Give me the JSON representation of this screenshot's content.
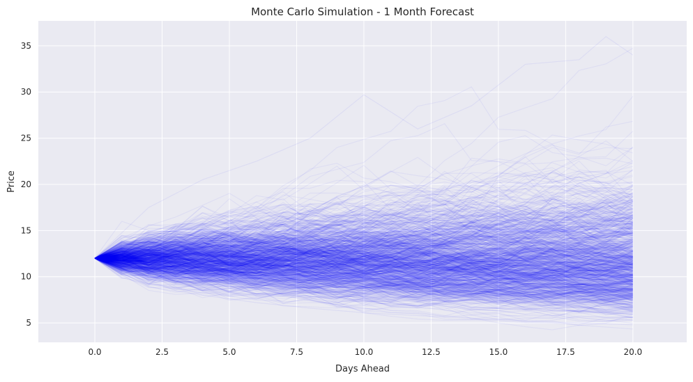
{
  "chart_data": {
    "type": "line",
    "title": "Monte Carlo Simulation - 1 Month Forecast",
    "xlabel": "Days Ahead",
    "ylabel": "Price",
    "xlim": [
      -2.1,
      22.0
    ],
    "ylim": [
      2.9,
      37.7
    ],
    "xticks": [
      0.0,
      2.5,
      5.0,
      7.5,
      10.0,
      12.5,
      15.0,
      17.5,
      20.0
    ],
    "xtick_labels": [
      "0.0",
      "2.5",
      "5.0",
      "7.5",
      "10.0",
      "12.5",
      "15.0",
      "17.5",
      "20.0"
    ],
    "yticks": [
      5,
      10,
      15,
      20,
      25,
      30,
      35
    ],
    "ytick_labels": [
      "5",
      "10",
      "15",
      "20",
      "25",
      "30",
      "35"
    ],
    "grid": true,
    "legend": "none",
    "start_price": 12.0,
    "num_days": 20,
    "num_simulations": 1000,
    "line_color": "#0000ff",
    "line_alpha": 0.05,
    "background_color": "#eaeaf2",
    "grid_color": "#ffffff",
    "series_summary": [
      {
        "name": "max",
        "x": [
          0,
          2,
          4,
          6,
          8,
          10,
          12,
          14,
          16,
          18,
          19,
          20
        ],
        "y": [
          12.0,
          17.5,
          20.5,
          22.5,
          25.0,
          29.7,
          26.0,
          28.5,
          33.0,
          33.5,
          36.0,
          34.0
        ]
      },
      {
        "name": "min",
        "x": [
          0,
          2,
          4,
          6,
          8,
          10,
          12,
          14,
          16,
          18,
          20
        ],
        "y": [
          12.0,
          8.9,
          8.0,
          7.2,
          6.6,
          6.1,
          5.8,
          5.5,
          5.2,
          5.0,
          4.8
        ]
      }
    ]
  }
}
